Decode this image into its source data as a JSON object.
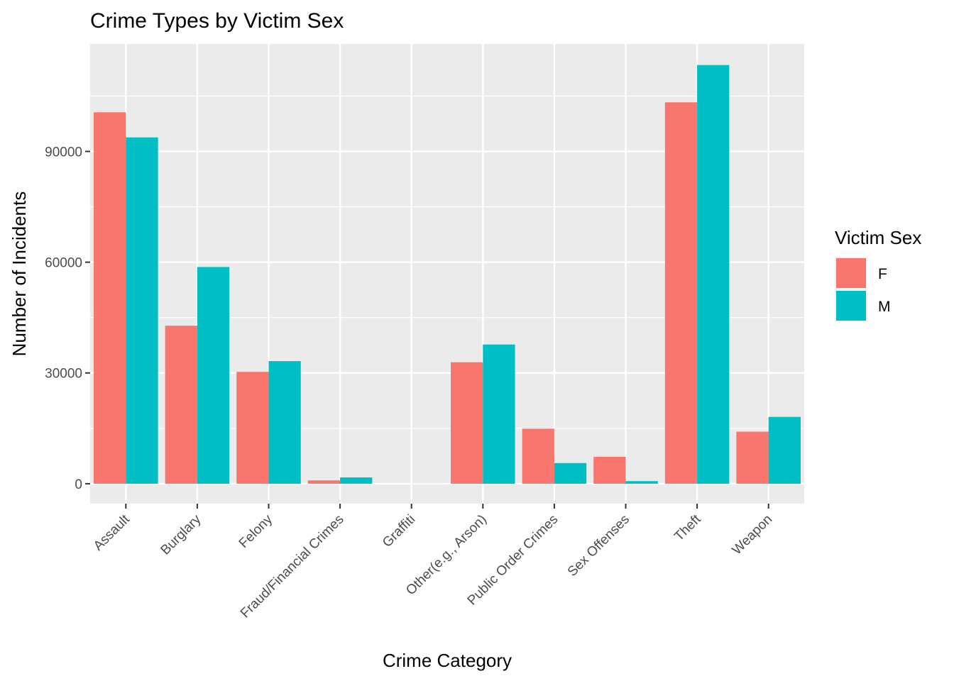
{
  "chart_data": {
    "type": "bar",
    "title": "Crime Types by Victim Sex",
    "xlabel": "Crime Category",
    "ylabel": "Number of Incidents",
    "categories": [
      "Assault",
      "Burglary",
      "Felony",
      "Fraud/Financial Crimes",
      "Graffiti",
      "Other(e.g., Arson)",
      "Public Order Crimes",
      "Sex Offenses",
      "Theft",
      "Weapon"
    ],
    "series": [
      {
        "name": "F",
        "color": "#F8766D",
        "values": [
          100600,
          42800,
          30300,
          900,
          10,
          32900,
          14900,
          7300,
          103300,
          14100
        ]
      },
      {
        "name": "M",
        "color": "#00BFC4",
        "values": [
          93800,
          58700,
          33200,
          1700,
          15,
          37700,
          5600,
          700,
          113400,
          18100
        ]
      }
    ],
    "ylim": [
      -5400,
      119100
    ],
    "yticks": [
      0,
      30000,
      60000,
      90000
    ],
    "ytick_labels": [
      "0",
      "30000",
      "60000",
      "90000"
    ],
    "grid": true,
    "legend": {
      "title": "Victim Sex",
      "position": "right",
      "entries": [
        "F",
        "M"
      ]
    }
  }
}
